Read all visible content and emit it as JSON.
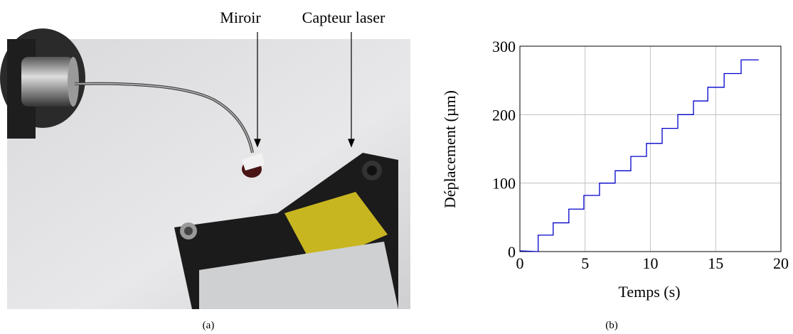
{
  "photo": {
    "annotations": [
      "Miroir",
      "Capteur laser"
    ],
    "caption": "(a)"
  },
  "chart_data": {
    "type": "line",
    "caption": "(b)",
    "x_label": "Temps (s)",
    "y_label": "Déplacement (µm)",
    "x": [
      0,
      1.4,
      1.4,
      2.55,
      2.55,
      3.75,
      3.75,
      4.9,
      4.9,
      6.1,
      6.1,
      7.3,
      7.3,
      8.5,
      8.5,
      9.7,
      9.7,
      10.9,
      10.9,
      12.1,
      12.1,
      13.3,
      13.3,
      14.4,
      14.4,
      15.65,
      15.65,
      16.95,
      16.95,
      18.3
    ],
    "series": [
      {
        "color": "#0000cc",
        "values": [
          1,
          0,
          24,
          24,
          42,
          42,
          62,
          62,
          82,
          82,
          100,
          100,
          118,
          118,
          139,
          139,
          158,
          158,
          180,
          180,
          200,
          200,
          220,
          220,
          240,
          240,
          260,
          260,
          280,
          280
        ]
      }
    ],
    "xlim": [
      0,
      20
    ],
    "ylim": [
      0,
      300
    ],
    "xticks": [
      0,
      5,
      10,
      15,
      20
    ],
    "yticks": [
      0,
      100,
      200,
      300
    ],
    "grid": true
  }
}
